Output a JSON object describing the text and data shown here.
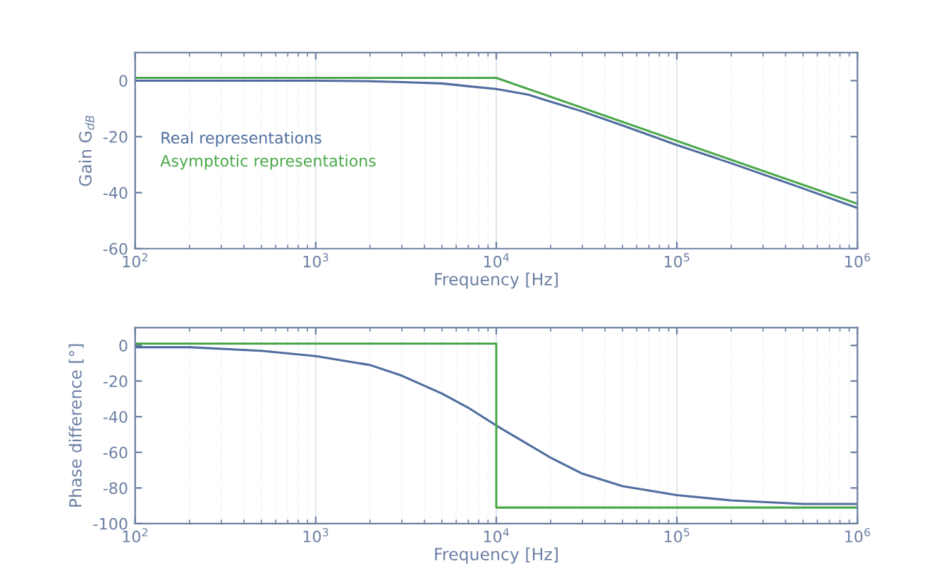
{
  "chart_data": [
    {
      "type": "line",
      "xlabel": "Frequency [Hz]",
      "ylabel": "Gain G$_{dB}$",
      "log": "x",
      "xlim": [
        100,
        1000000
      ],
      "ylim": [
        -60,
        10
      ],
      "xticks": [
        {
          "value": 100,
          "label": "10$^{2}$"
        },
        {
          "value": 1000,
          "label": "10$^{3}$"
        },
        {
          "value": 10000,
          "label": "10$^{4}$"
        },
        {
          "value": 100000,
          "label": "10$^{5}$"
        },
        {
          "value": 1000000,
          "label": "10$^{6}$"
        }
      ],
      "yticks": [
        -60,
        -40,
        -20,
        0
      ],
      "grid": "x",
      "legend": "center left",
      "series": [
        {
          "name": "Real representations",
          "color": "#4f6d9e",
          "x": [
            100,
            1000,
            2000,
            3000,
            5000,
            7000,
            10000,
            15000,
            20000,
            30000,
            50000,
            100000,
            200000,
            500000,
            1000000
          ],
          "values": [
            0,
            0,
            -0.2,
            -0.5,
            -1,
            -2,
            -3,
            -5,
            -7.5,
            -11,
            -16,
            -23,
            -29.5,
            -38.5,
            -45.5
          ]
        },
        {
          "name": "Asymptotic representations",
          "color": "#4aa84a",
          "x": [
            100,
            10000,
            1000000
          ],
          "values": [
            1,
            1,
            -44
          ]
        }
      ]
    },
    {
      "type": "line",
      "xlabel": "Frequency [Hz]",
      "ylabel": "Phase difference [°]",
      "log": "x",
      "xlim": [
        100,
        1000000
      ],
      "ylim": [
        -100,
        10
      ],
      "xticks": [
        {
          "value": 100,
          "label": "10$^{2}$"
        },
        {
          "value": 1000,
          "label": "10$^{3}$"
        },
        {
          "value": 10000,
          "label": "10$^{4}$"
        },
        {
          "value": 100000,
          "label": "10$^{5}$"
        },
        {
          "value": 1000000,
          "label": "10$^{6}$"
        }
      ],
      "yticks": [
        -100,
        -80,
        -60,
        -40,
        -20,
        0
      ],
      "grid": "x",
      "series": [
        {
          "color": "#4f6d9e",
          "x": [
            100,
            200,
            500,
            1000,
            2000,
            3000,
            5000,
            7000,
            10000,
            20000,
            30000,
            50000,
            100000,
            200000,
            500000,
            1000000
          ],
          "values": [
            -1,
            -1,
            -3,
            -6,
            -11,
            -17,
            -27,
            -35,
            -45,
            -63,
            -72,
            -79,
            -84,
            -87,
            -89,
            -89
          ]
        },
        {
          "color": "#4aa84a",
          "x": [
            100,
            10000,
            10000,
            1000000
          ],
          "values": [
            1,
            1,
            -91,
            -91
          ]
        }
      ]
    }
  ]
}
